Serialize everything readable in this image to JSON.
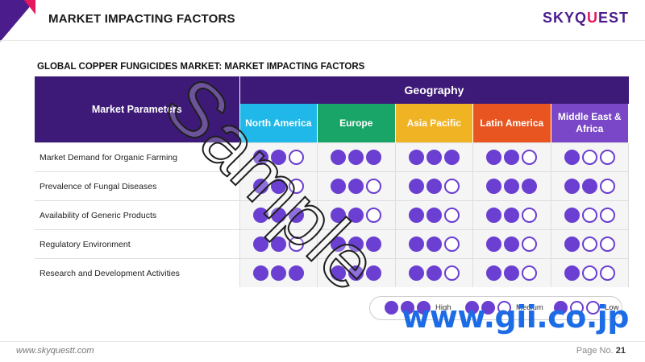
{
  "header": {
    "title": "MARKET IMPACTING FACTORS",
    "logo_main": "SKYQ",
    "logo_accent": "U",
    "logo_tail": "EST"
  },
  "subtitle": "GLOBAL COPPER FUNGICIDES MARKET: MARKET IMPACTING FACTORS",
  "colors": {
    "header_purple": "#3d1a78",
    "dot_purple": "#6a3fd1",
    "north_america": "#1fb8e8",
    "europe": "#1aa568",
    "asia_pacific": "#f0b323",
    "latin_america": "#e85520",
    "middle_east_africa": "#7a47c8"
  },
  "table": {
    "param_header": "Market Parameters",
    "geo_header": "Geography",
    "regions": [
      {
        "name": "North America",
        "color": "#1fb8e8"
      },
      {
        "name": "Europe",
        "color": "#1aa568"
      },
      {
        "name": "Asia Pacific",
        "color": "#f0b323"
      },
      {
        "name": "Latin America",
        "color": "#e85520"
      },
      {
        "name": "Middle East & Africa",
        "color": "#7a47c8"
      }
    ],
    "rows": [
      {
        "label": "Market Demand for Organic Farming",
        "levels": [
          2,
          3,
          3,
          2,
          1
        ]
      },
      {
        "label": "Prevalence of Fungal Diseases",
        "levels": [
          2,
          2,
          2,
          3,
          2
        ]
      },
      {
        "label": "Availability of Generic Products",
        "levels": [
          3,
          2,
          2,
          2,
          1
        ]
      },
      {
        "label": "Regulatory Environment",
        "levels": [
          2,
          3,
          2,
          2,
          1
        ]
      },
      {
        "label": "Research and Development Activities",
        "levels": [
          3,
          3,
          2,
          2,
          1
        ]
      }
    ]
  },
  "legend": [
    {
      "label": "High",
      "level": 3
    },
    {
      "label": "Medium",
      "level": 2
    },
    {
      "label": "Low",
      "level": 1
    }
  ],
  "watermark": "Sample",
  "gii": "www.gii.co.jp",
  "footer": {
    "website": "www.skyquestt.com",
    "page_label": "Page No.",
    "page_number": "21"
  }
}
